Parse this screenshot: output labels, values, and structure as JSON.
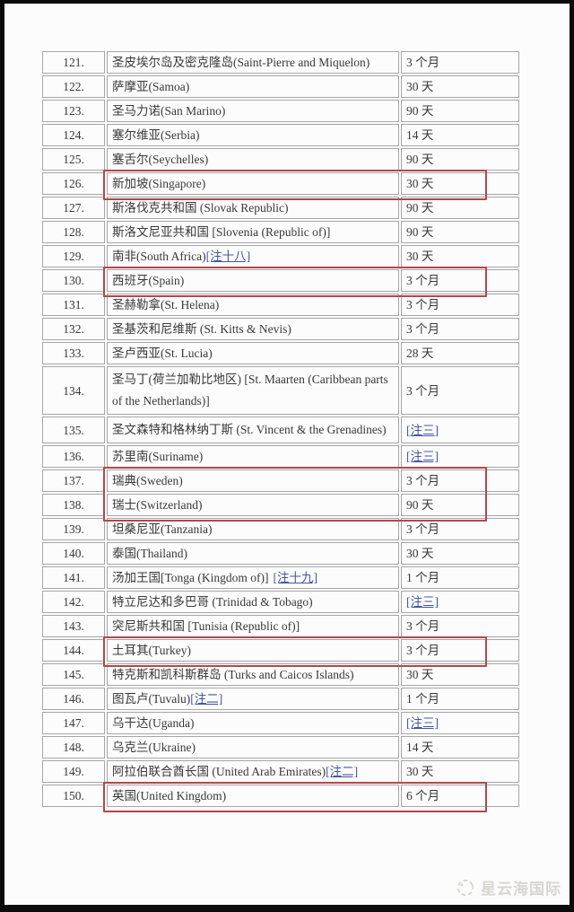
{
  "colors": {
    "highlight_box": "#b0484d",
    "link": "#4656a0",
    "grid_line": "#a6a6a6"
  },
  "watermark": {
    "text": "星云海国际"
  },
  "table": {
    "rows": [
      {
        "num": "121.",
        "name": "圣皮埃尔岛及密克隆岛(Saint-Pierre and Miquelon)",
        "note": "",
        "duration": "3 个月",
        "duration_link": false,
        "wrap": false
      },
      {
        "num": "122.",
        "name": "萨摩亚(Samoa)",
        "note": "",
        "duration": "30 天",
        "duration_link": false,
        "wrap": false
      },
      {
        "num": "123.",
        "name": "圣马力诺(San Marino)",
        "note": "",
        "duration": "90 天",
        "duration_link": false,
        "wrap": false
      },
      {
        "num": "124.",
        "name": "塞尔维亚(Serbia)",
        "note": "",
        "duration": "14 天",
        "duration_link": false,
        "wrap": false
      },
      {
        "num": "125.",
        "name": "塞舌尔(Seychelles)",
        "note": "",
        "duration": "90 天",
        "duration_link": false,
        "wrap": false
      },
      {
        "num": "126.",
        "name": "新加坡(Singapore)",
        "note": "",
        "duration": "30 天",
        "duration_link": false,
        "wrap": false
      },
      {
        "num": "127.",
        "name": "斯洛伐克共和国 (Slovak Republic)",
        "note": "",
        "duration": "90 天",
        "duration_link": false,
        "wrap": false
      },
      {
        "num": "128.",
        "name": "斯洛文尼亚共和国 [Slovenia (Republic of)]",
        "note": "",
        "duration": "90 天",
        "duration_link": false,
        "wrap": false
      },
      {
        "num": "129.",
        "name": "南非(South Africa)",
        "note": "[注十八]",
        "duration": "30 天",
        "duration_link": false,
        "wrap": false
      },
      {
        "num": "130.",
        "name": "西班牙(Spain)",
        "note": "",
        "duration": "3 个月",
        "duration_link": false,
        "wrap": false
      },
      {
        "num": "131.",
        "name": "圣赫勒拿(St. Helena)",
        "note": "",
        "duration": "3 个月",
        "duration_link": false,
        "wrap": false
      },
      {
        "num": "132.",
        "name": "圣基茨和尼维斯 (St. Kitts & Nevis)",
        "note": "",
        "duration": "3 个月",
        "duration_link": false,
        "wrap": false
      },
      {
        "num": "133.",
        "name": "圣卢西亚(St. Lucia)",
        "note": "",
        "duration": "28 天",
        "duration_link": false,
        "wrap": false
      },
      {
        "num": "134.",
        "name": "圣马丁(荷兰加勒比地区) [St. Maarten (Caribbean parts of the Netherlands)]",
        "note": "",
        "duration": "3 个月",
        "duration_link": false,
        "wrap": true
      },
      {
        "num": "135.",
        "name": "圣文森特和格林纳丁斯 (St. Vincent & the Grenadines)",
        "note": "",
        "duration": "[注三]",
        "duration_link": true,
        "wrap": true
      },
      {
        "num": "136.",
        "name": "苏里南(Suriname)",
        "note": "",
        "duration": "[注三]",
        "duration_link": true,
        "wrap": false
      },
      {
        "num": "137.",
        "name": "瑞典(Sweden)",
        "note": "",
        "duration": "3 个月",
        "duration_link": false,
        "wrap": false
      },
      {
        "num": "138.",
        "name": "瑞士(Switzerland)",
        "note": "",
        "duration": "90 天",
        "duration_link": false,
        "wrap": false
      },
      {
        "num": "139.",
        "name": "坦桑尼亚(Tanzania)",
        "note": "",
        "duration": "3 个月",
        "duration_link": false,
        "wrap": false
      },
      {
        "num": "140.",
        "name": "泰国(Thailand)",
        "note": "",
        "duration": "30 天",
        "duration_link": false,
        "wrap": false
      },
      {
        "num": "141.",
        "name": "汤加王国[Tonga (Kingdom of)]",
        "note": "[注十九]",
        "note_gap": true,
        "duration": "1 个月",
        "duration_link": false,
        "wrap": false
      },
      {
        "num": "142.",
        "name": "特立尼达和多巴哥 (Trinidad & Tobago)",
        "note": "",
        "duration": "[注三]",
        "duration_link": true,
        "wrap": false
      },
      {
        "num": "143.",
        "name": "突尼斯共和国 [Tunisia (Republic of)]",
        "note": "",
        "duration": "3 个月",
        "duration_link": false,
        "wrap": false
      },
      {
        "num": "144.",
        "name": "土耳其(Turkey)",
        "note": "",
        "duration": "3 个月",
        "duration_link": false,
        "wrap": false
      },
      {
        "num": "145.",
        "name": "特克斯和凯科斯群岛 (Turks and Caicos Islands)",
        "note": "",
        "duration": "30 天",
        "duration_link": false,
        "wrap": false
      },
      {
        "num": "146.",
        "name": "图瓦卢(Tuvalu)",
        "note": "[注二]",
        "duration": "1 个月",
        "duration_link": false,
        "wrap": false
      },
      {
        "num": "147.",
        "name": "乌干达(Uganda)",
        "note": "",
        "duration": "[注三]",
        "duration_link": true,
        "wrap": false
      },
      {
        "num": "148.",
        "name": "乌克兰(Ukraine)",
        "note": "",
        "duration": "14 天",
        "duration_link": false,
        "wrap": false
      },
      {
        "num": "149.",
        "name": "阿拉伯联合酋长国 (United Arab Emirates)",
        "note": "[注二]",
        "duration": "30 天",
        "duration_link": false,
        "wrap": false
      },
      {
        "num": "150.",
        "name": "英国(United Kingdom)",
        "note": "",
        "duration": "6 个月",
        "duration_link": false,
        "wrap": false
      }
    ],
    "highlight_groups": [
      [
        "126"
      ],
      [
        "130"
      ],
      [
        "137",
        "138"
      ],
      [
        "144"
      ],
      [
        "150"
      ]
    ]
  }
}
